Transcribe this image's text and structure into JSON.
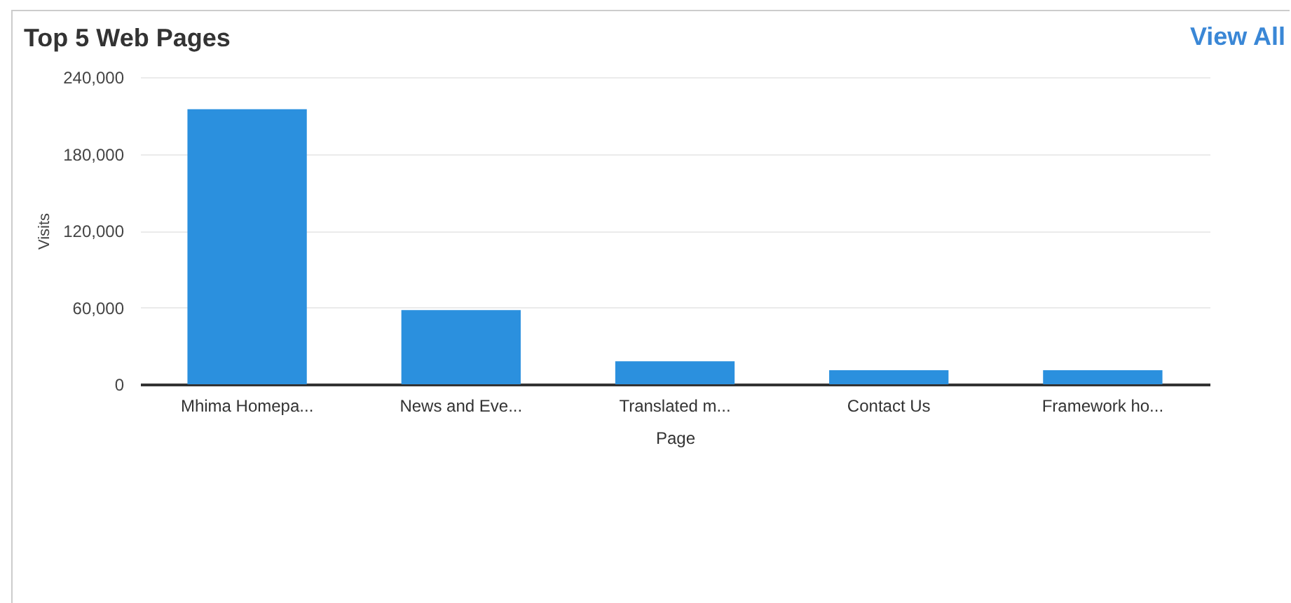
{
  "chart_data": {
    "type": "bar",
    "title": "Top 5 Web Pages",
    "xlabel": "Page",
    "ylabel": "Visits",
    "categories": [
      "Mhima Homepa...",
      "News and Eve...",
      "Translated m...",
      "Contact Us",
      "Framework ho..."
    ],
    "values": [
      215000,
      58000,
      18000,
      11000,
      11000
    ],
    "color": "#2b90de",
    "ylim": [
      0,
      240000
    ],
    "yticks": [
      {
        "value": 0,
        "label": "0"
      },
      {
        "value": 60000,
        "label": "60,000"
      },
      {
        "value": 120000,
        "label": "120,000"
      },
      {
        "value": 180000,
        "label": "180,000"
      },
      {
        "value": 240000,
        "label": "240,000"
      }
    ],
    "grid": "y",
    "annotations": [
      "View All"
    ]
  }
}
